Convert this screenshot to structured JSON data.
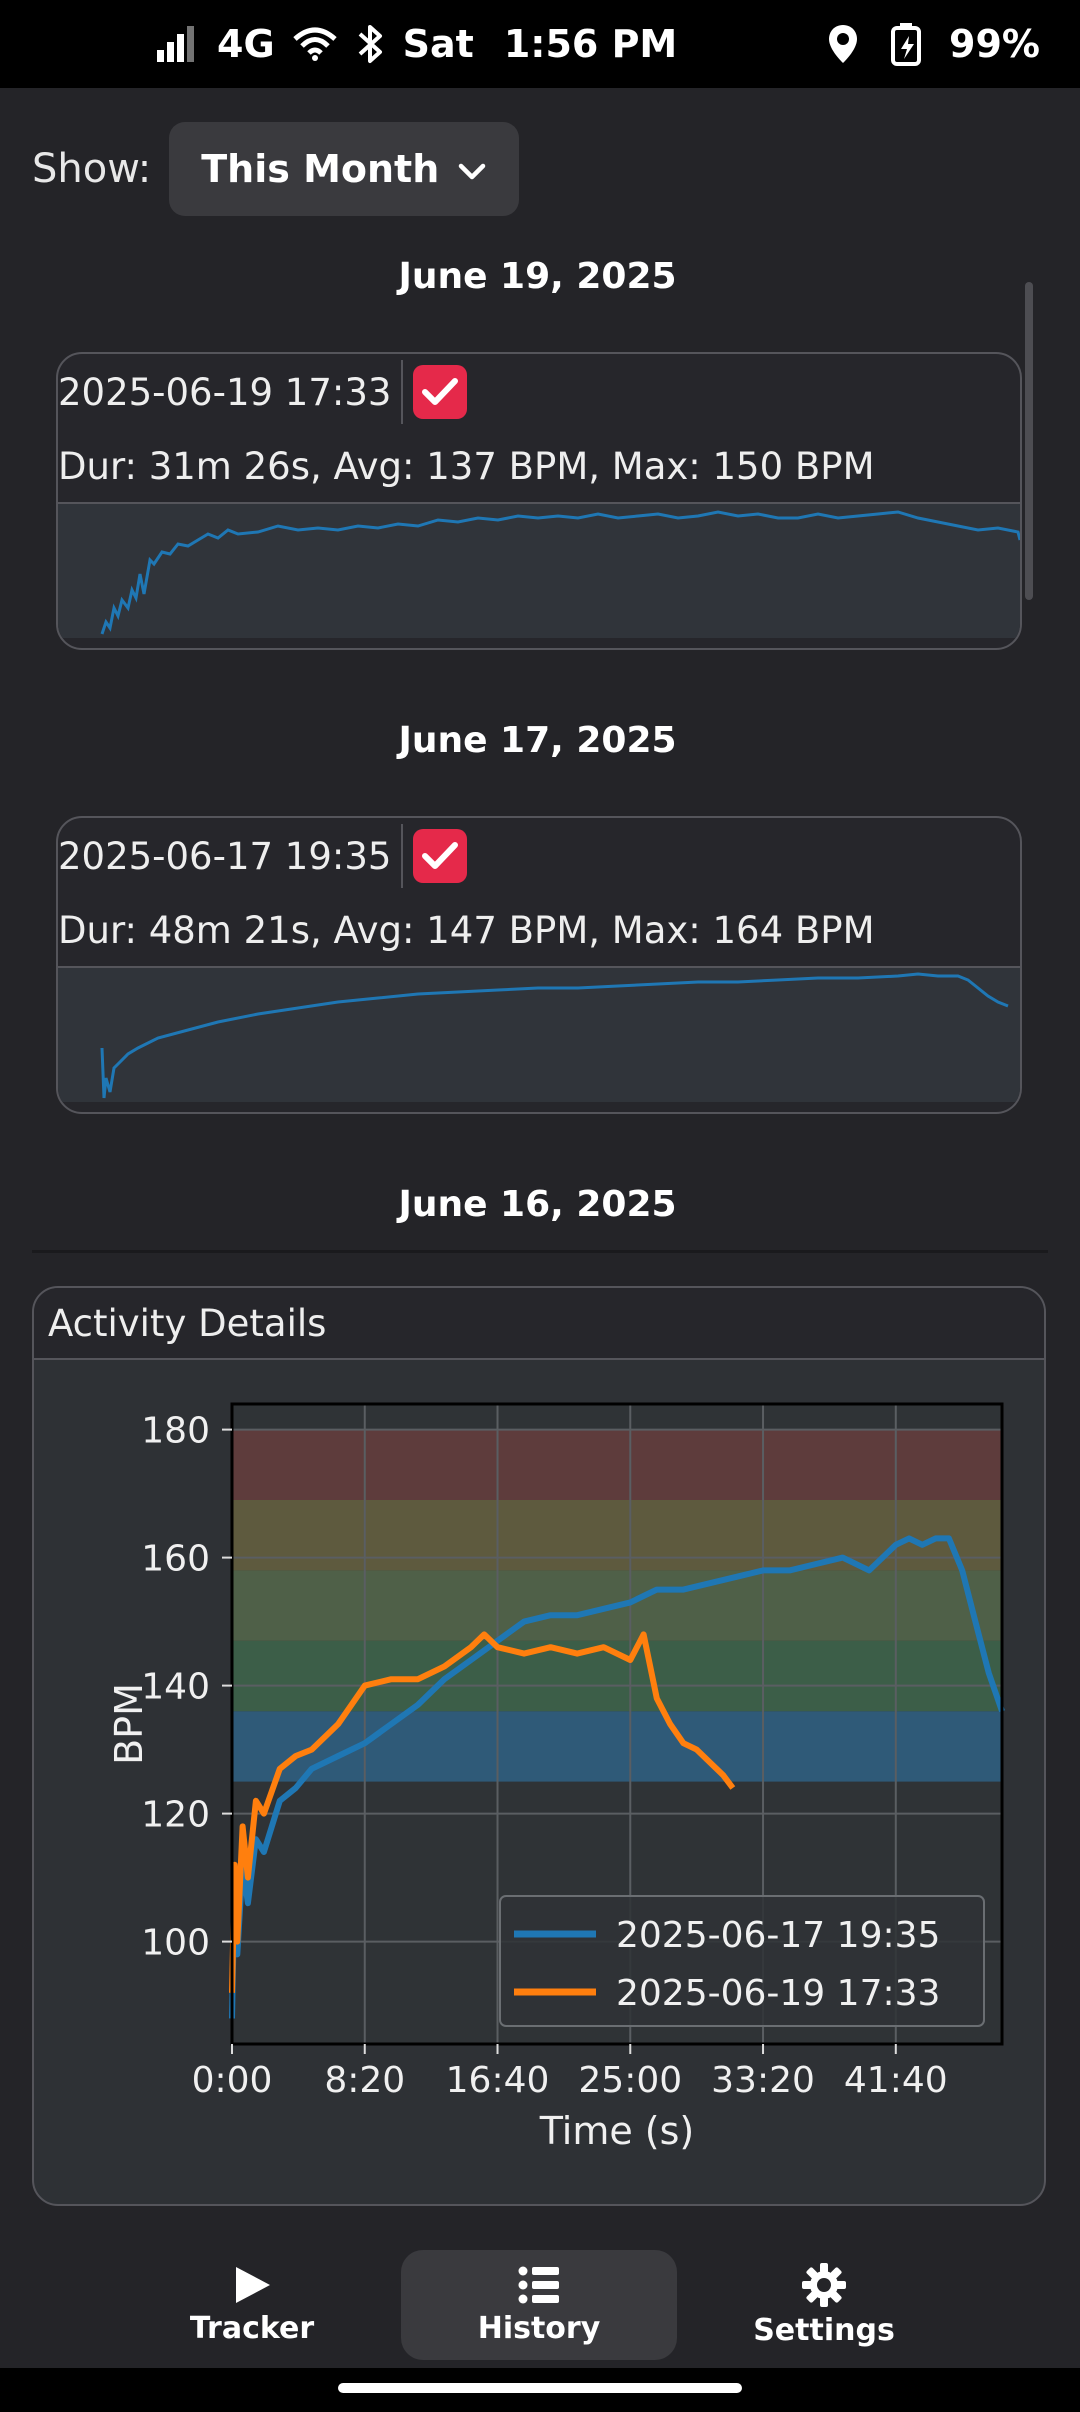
{
  "status_bar": {
    "network": "4G",
    "day": "Sat",
    "time": "1:56 PM",
    "battery": "99%"
  },
  "filter": {
    "label": "Show:",
    "selected": "This Month"
  },
  "entries": [
    {
      "date": "June 19, 2025",
      "timestamp": "2025-06-19 17:33",
      "stats": "Dur: 31m 26s, Avg: 137 BPM, Max: 150 BPM",
      "checked": true
    },
    {
      "date": "June 17, 2025",
      "timestamp": "2025-06-17 19:35",
      "stats": "Dur: 48m 21s, Avg: 147 BPM, Max: 164 BPM",
      "checked": true
    }
  ],
  "next_date": "June 16, 2025",
  "details": {
    "title": "Activity Details"
  },
  "chart_data": {
    "type": "line",
    "xlabel": "Time (s)",
    "ylabel": "BPM",
    "xlim": [
      0,
      2900
    ],
    "ylim": [
      84,
      184
    ],
    "x_ticks": [
      0,
      500,
      1000,
      1500,
      2000,
      2500
    ],
    "x_tick_labels": [
      "0:00",
      "8:20",
      "16:40",
      "25:00",
      "33:20",
      "41:40"
    ],
    "y_ticks": [
      100,
      120,
      140,
      160,
      180
    ],
    "y_tick_labels": [
      "100",
      "120",
      "140",
      "160",
      "180"
    ],
    "grid": true,
    "legend": "lower-right",
    "zones": [
      {
        "from": 125,
        "to": 136,
        "color": "#2f5a78"
      },
      {
        "from": 136,
        "to": 147,
        "color": "#3c5e48"
      },
      {
        "from": 147,
        "to": 158,
        "color": "#4f6048"
      },
      {
        "from": 158,
        "to": 169,
        "color": "#5e5a3e"
      },
      {
        "from": 169,
        "to": 180,
        "color": "#5e3c3c"
      }
    ],
    "series": [
      {
        "name": "2025-06-17 19:35",
        "color": "#1f77b4",
        "x": [
          0,
          10,
          20,
          40,
          60,
          90,
          120,
          180,
          240,
          300,
          400,
          500,
          600,
          700,
          800,
          900,
          1000,
          1100,
          1200,
          1300,
          1400,
          1500,
          1600,
          1700,
          1800,
          1900,
          2000,
          2100,
          2200,
          2300,
          2400,
          2450,
          2500,
          2550,
          2600,
          2650,
          2700,
          2750,
          2800,
          2850,
          2900
        ],
        "y": [
          88,
          110,
          98,
          112,
          106,
          116,
          114,
          122,
          124,
          127,
          129,
          131,
          134,
          137,
          141,
          144,
          147,
          150,
          151,
          151,
          152,
          153,
          155,
          155,
          156,
          157,
          158,
          158,
          159,
          160,
          158,
          160,
          162,
          163,
          162,
          163,
          163,
          158,
          150,
          142,
          136
        ]
      },
      {
        "name": "2025-06-19 17:33",
        "color": "#ff7f0e",
        "x": [
          0,
          10,
          20,
          40,
          60,
          90,
          120,
          180,
          240,
          300,
          400,
          450,
          500,
          600,
          700,
          800,
          900,
          950,
          1000,
          1100,
          1200,
          1300,
          1400,
          1500,
          1550,
          1600,
          1650,
          1700,
          1750,
          1800,
          1850,
          1886
        ],
        "y": [
          92,
          112,
          100,
          118,
          110,
          122,
          120,
          127,
          129,
          130,
          134,
          137,
          140,
          141,
          141,
          143,
          146,
          148,
          146,
          145,
          146,
          145,
          146,
          144,
          148,
          138,
          134,
          131,
          130,
          128,
          126,
          124
        ]
      }
    ]
  },
  "nav": {
    "tracker": "Tracker",
    "history": "History",
    "settings": "Settings",
    "active": "history"
  }
}
